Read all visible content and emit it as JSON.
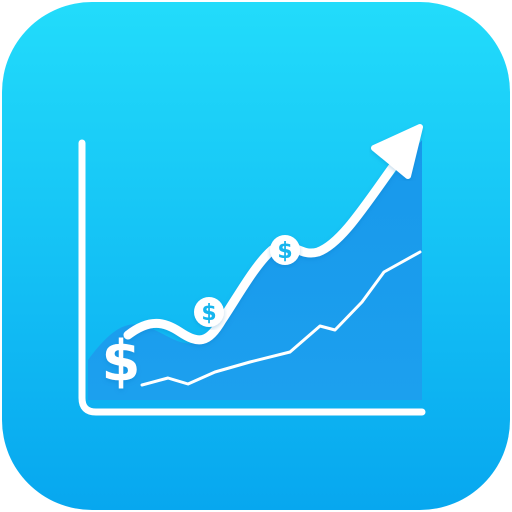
{
  "icon": {
    "name": "finance-growth-chart-app-icon",
    "background_gradient": [
      "#22dcfb",
      "#07a7ef"
    ],
    "area_color": "#1893ea",
    "stroke_color": "#ffffff",
    "coin_symbol": "$",
    "coin_text_color": "#17b5ee",
    "glyph_text": "$"
  }
}
